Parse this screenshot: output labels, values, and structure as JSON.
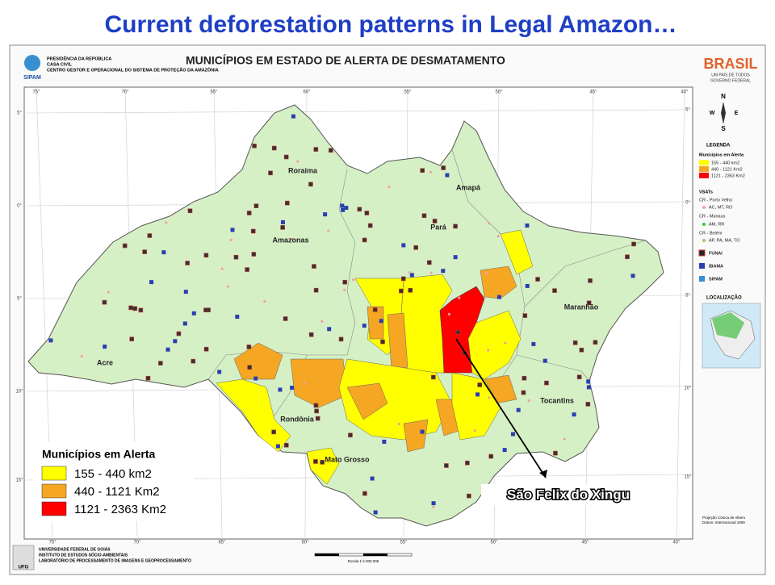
{
  "title": "Current deforestation patterns in Legal Amazon…",
  "map": {
    "heading": "MUNICÍPIOS EM ESTADO DE ALERTA DE DESMATAMENTO",
    "header_left": [
      "PRESIDÊNCIA DA REPÚBLICA",
      "CASA CIVIL",
      "CENTRO GESTOR E OPERACIONAL DO SISTEMA DE PROTEÇÃO DA AMAZÔNIA"
    ],
    "logo_left": "SIPAM",
    "logo_right": "BRASIL",
    "logo_right_sub": [
      "UM PAÍS DE TODOS",
      "GOVERNO FEDERAL"
    ],
    "states": [
      "Roraima",
      "Amapá",
      "Amazonas",
      "Pará",
      "Maranhão",
      "Acre",
      "Rondônia",
      "Tocantins",
      "Mato Grosso"
    ],
    "longitudes": [
      "75°",
      "70°",
      "65°",
      "60°",
      "55°",
      "50°",
      "45°",
      "40°"
    ],
    "latitudes": [
      "5°",
      "0°",
      "5°",
      "10°",
      "15°"
    ],
    "compass": [
      "N",
      "W",
      "E",
      "S"
    ],
    "annotation": "São Felix do Xingu"
  },
  "legend": {
    "title": "Municípios em Alerta",
    "items": [
      {
        "label": "155 - 440 km2",
        "color": "#ffff00"
      },
      {
        "label": "440 - 1121 Km2",
        "color": "#f5a623"
      },
      {
        "label": "1121 - 2363 Km2",
        "color": "#ff0000"
      }
    ]
  },
  "side_legend": {
    "title": "LEGENDA",
    "subtitle": "Municípios em Alerta",
    "items": [
      "155 - 440 km2",
      "440 - 1121 Km2",
      "1121 - 2363 Km2"
    ],
    "vsats_title": "VSATs",
    "vsats": [
      "CR - Porto Velho",
      "AC, MT, RO",
      "CR - Manaus",
      "AM, RR",
      "CR - Belém",
      "AP, PA, MA, TO"
    ],
    "symbols": [
      "FUNAI",
      "IBAMA",
      "SIPAM"
    ],
    "location_title": "LOCALIZAÇÃO",
    "projection": [
      "Projeção Cônica de Albers",
      "Datum: Internacional 1909"
    ]
  },
  "footer": {
    "lines": [
      "UNIVERSIDADE FEDERAL DE GOIÁS",
      "INSTITUTO DE ESTUDOS SÓCIO-AMBIENTAIS",
      "LABORATÓRIO DE PROCESSAMENTO DE IMAGENS E GEOPROCESSAMENTO"
    ],
    "logo": "UFG",
    "scale": "Escala 1:4.000.000"
  }
}
